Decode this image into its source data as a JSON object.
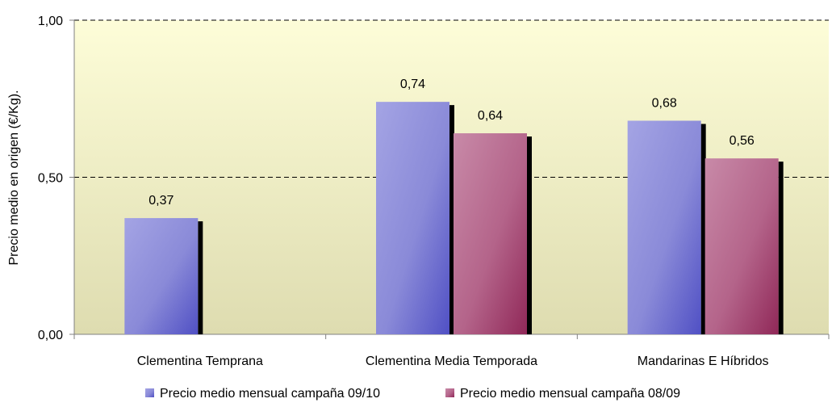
{
  "chart_data": {
    "type": "bar",
    "title": "",
    "xlabel": "",
    "ylabel": "Precio medio en origen (€/Kg).",
    "categories": [
      "Clementina Temprana",
      "Clementina Media Temporada",
      "Mandarinas E Híbridos"
    ],
    "series": [
      {
        "name": "Precio medio mensual campaña 09/10",
        "values": [
          0.37,
          0.74,
          0.68
        ],
        "labels": [
          "0,37",
          "0,74",
          "0,68"
        ],
        "color": "#8c8fd8"
      },
      {
        "name": "Precio medio mensual campaña 08/09",
        "values": [
          null,
          0.64,
          0.56
        ],
        "labels": [
          "",
          "0,64",
          "0,56"
        ],
        "color": "#b8648a"
      }
    ],
    "ylim": [
      0,
      1.0
    ],
    "yticks": [
      0.0,
      0.5,
      1.0
    ],
    "ytick_labels": [
      "0,00",
      "0,50",
      "1,00"
    ],
    "grid": "dashed horizontal at 0.50 and 1.00",
    "legend_position": "bottom",
    "plot_background": "#fafadc"
  }
}
